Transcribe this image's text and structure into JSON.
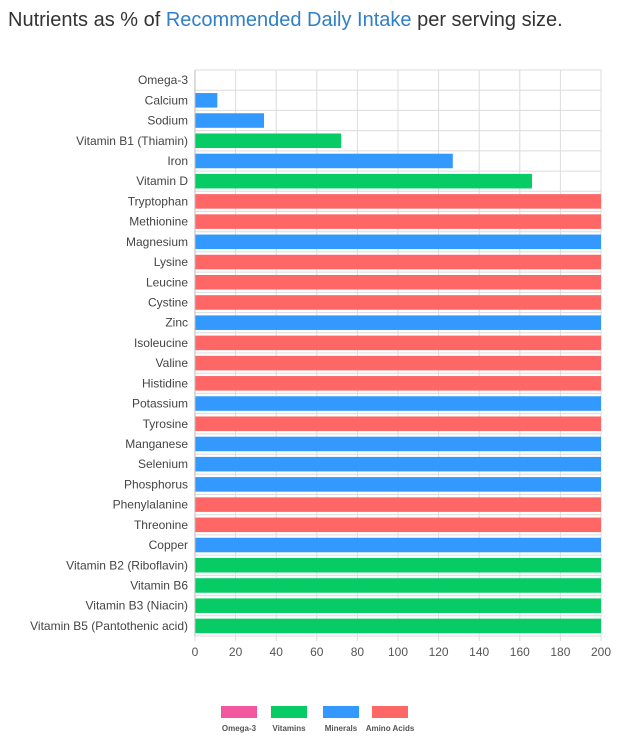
{
  "heading": {
    "prefix": "Nutrients as % of ",
    "link": "Recommended Daily Intake",
    "suffix": " per serving size."
  },
  "colors": {
    "Omega-3": "#f1589f",
    "Vitamins": "#07cc66",
    "Minerals": "#3399ff",
    "Amino Acids": "#ff6666",
    "grid": "#dcdcdc",
    "axis_text": "#555555"
  },
  "chart_data": {
    "type": "bar",
    "orientation": "horizontal",
    "title": "",
    "xlabel": "",
    "ylabel": "",
    "xlim": [
      0,
      200
    ],
    "xticks": [
      0,
      20,
      40,
      60,
      80,
      100,
      120,
      140,
      160,
      180,
      200
    ],
    "categories": [
      "Omega-3",
      "Calcium",
      "Sodium",
      "Vitamin B1 (Thiamin)",
      "Iron",
      "Vitamin D",
      "Tryptophan",
      "Methionine",
      "Magnesium",
      "Lysine",
      "Leucine",
      "Cystine",
      "Zinc",
      "Isoleucine",
      "Valine",
      "Histidine",
      "Potassium",
      "Tyrosine",
      "Manganese",
      "Selenium",
      "Phosphorus",
      "Phenylalanine",
      "Threonine",
      "Copper",
      "Vitamin B2 (Riboflavin)",
      "Vitamin B6",
      "Vitamin B3 (Niacin)",
      "Vitamin B5 (Pantothenic acid)"
    ],
    "values": [
      0,
      11,
      34,
      72,
      127,
      166,
      200,
      200,
      200,
      200,
      200,
      200,
      200,
      200,
      200,
      200,
      200,
      200,
      200,
      200,
      200,
      200,
      200,
      200,
      200,
      200,
      200,
      200
    ],
    "groups": [
      "Omega-3",
      "Minerals",
      "Minerals",
      "Vitamins",
      "Minerals",
      "Vitamins",
      "Amino Acids",
      "Amino Acids",
      "Minerals",
      "Amino Acids",
      "Amino Acids",
      "Amino Acids",
      "Minerals",
      "Amino Acids",
      "Amino Acids",
      "Amino Acids",
      "Minerals",
      "Amino Acids",
      "Minerals",
      "Minerals",
      "Minerals",
      "Amino Acids",
      "Amino Acids",
      "Minerals",
      "Vitamins",
      "Vitamins",
      "Vitamins",
      "Vitamins"
    ],
    "legend": [
      "Omega-3",
      "Vitamins",
      "Minerals",
      "Amino Acids"
    ],
    "legend_position": "bottom",
    "grid": true
  }
}
